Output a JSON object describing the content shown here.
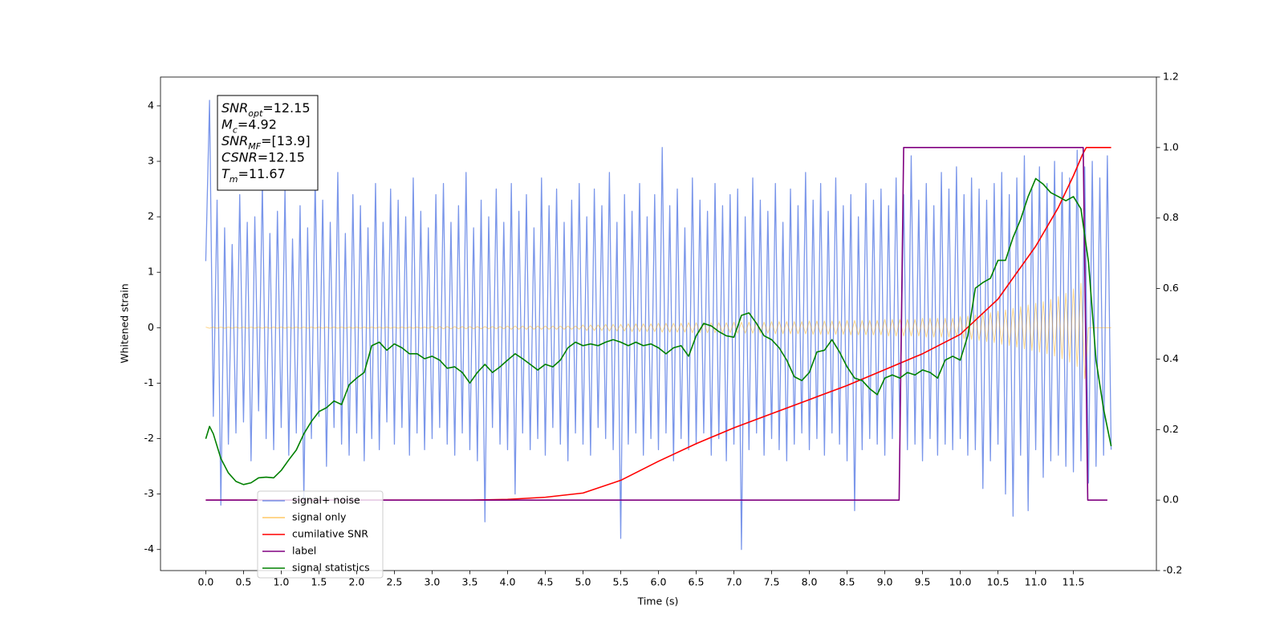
{
  "chart_data": {
    "type": "line",
    "xlabel": "Time (s)",
    "ylabel": "Whitened strain",
    "xlim": [
      -0.6,
      12.6
    ],
    "ylim": [
      -4.38,
      4.52
    ],
    "y2lim": [
      -0.2,
      1.2
    ],
    "xticks": [
      {
        "value": 0,
        "label": "0.0"
      },
      0.5,
      {
        "value": 1,
        "label": "1.0"
      },
      1.5,
      {
        "value": 2,
        "label": "2.0"
      },
      2.5,
      {
        "value": 3,
        "label": "3.0"
      },
      3.5,
      {
        "value": 4,
        "label": "4.0"
      },
      4.5,
      {
        "value": 5,
        "label": "5.0"
      },
      5.5,
      {
        "value": 6,
        "label": "6.0"
      },
      6.5,
      {
        "value": 7,
        "label": "7.0"
      },
      7.5,
      {
        "value": 8,
        "label": "8.0"
      },
      8.5,
      {
        "value": 9,
        "label": "9.0"
      },
      9.5,
      {
        "value": 10,
        "label": "10.0"
      },
      10.5,
      {
        "value": 11,
        "label": "11.0"
      },
      11.5
    ],
    "yticks": [
      -4,
      -3,
      -2,
      -1,
      0,
      1,
      2,
      3,
      4
    ],
    "y2ticks": [
      -0.2,
      {
        "value": 0,
        "label": "0.0"
      },
      0.2,
      0.4,
      0.6,
      0.8,
      {
        "value": 1,
        "label": "1.0"
      },
      1.2
    ],
    "annotation": [
      {
        "main": "SNR",
        "sub": "opt",
        "value": "=12.15"
      },
      {
        "main": "M",
        "sub": "c",
        "value": "=4.92"
      },
      {
        "main": "SNR",
        "sub": "MF",
        "value": "=[13.9]"
      },
      {
        "main": "CSNR",
        "value": "=12.15"
      },
      {
        "main": "T",
        "sub": "m",
        "value": "=11.67"
      }
    ],
    "x": [
      0,
      0.05,
      0.1,
      0.15,
      0.2,
      0.25,
      0.3,
      0.35,
      0.4,
      0.45,
      0.5,
      0.55,
      0.6,
      0.65,
      0.7,
      0.75,
      0.8,
      0.85,
      0.9,
      0.95,
      1,
      1.05,
      1.1,
      1.15,
      1.2,
      1.25,
      1.3,
      1.35,
      1.4,
      1.45,
      1.5,
      1.55,
      1.6,
      1.65,
      1.7,
      1.75,
      1.8,
      1.85,
      1.9,
      1.95,
      2,
      2.05,
      2.1,
      2.15,
      2.2,
      2.25,
      2.3,
      2.35,
      2.4,
      2.45,
      2.5,
      2.55,
      2.6,
      2.65,
      2.7,
      2.75,
      2.8,
      2.85,
      2.9,
      2.95,
      3,
      3.05,
      3.1,
      3.15,
      3.2,
      3.25,
      3.3,
      3.35,
      3.4,
      3.45,
      3.5,
      3.55,
      3.6,
      3.65,
      3.7,
      3.75,
      3.8,
      3.85,
      3.9,
      3.95,
      4,
      4.05,
      4.1,
      4.15,
      4.2,
      4.25,
      4.3,
      4.35,
      4.4,
      4.45,
      4.5,
      4.55,
      4.6,
      4.65,
      4.7,
      4.75,
      4.8,
      4.85,
      4.9,
      4.95,
      5,
      5.05,
      5.1,
      5.15,
      5.2,
      5.25,
      5.3,
      5.35,
      5.4,
      5.45,
      5.5,
      5.55,
      5.6,
      5.65,
      5.7,
      5.75,
      5.8,
      5.85,
      5.9,
      5.95,
      6,
      6.05,
      6.1,
      6.15,
      6.2,
      6.25,
      6.3,
      6.35,
      6.4,
      6.45,
      6.5,
      6.55,
      6.6,
      6.65,
      6.7,
      6.75,
      6.8,
      6.85,
      6.9,
      6.95,
      7,
      7.05,
      7.1,
      7.15,
      7.2,
      7.25,
      7.3,
      7.35,
      7.4,
      7.45,
      7.5,
      7.55,
      7.6,
      7.65,
      7.7,
      7.75,
      7.8,
      7.85,
      7.9,
      7.95,
      8,
      8.05,
      8.1,
      8.15,
      8.2,
      8.25,
      8.3,
      8.35,
      8.4,
      8.45,
      8.5,
      8.55,
      8.6,
      8.65,
      8.7,
      8.75,
      8.8,
      8.85,
      8.9,
      8.95,
      9,
      9.05,
      9.1,
      9.15,
      9.2,
      9.25,
      9.3,
      9.35,
      9.4,
      9.45,
      9.5,
      9.55,
      9.6,
      9.65,
      9.7,
      9.75,
      9.8,
      9.85,
      9.9,
      9.95,
      10,
      10.05,
      10.1,
      10.15,
      10.2,
      10.25,
      10.3,
      10.35,
      10.4,
      10.45,
      10.5,
      10.55,
      10.6,
      10.65,
      10.7,
      10.75,
      10.8,
      10.85,
      10.9,
      10.95,
      11,
      11.05,
      11.1,
      11.15,
      11.2,
      11.25,
      11.3,
      11.35,
      11.4,
      11.45,
      11.5,
      11.55,
      11.6,
      11.65,
      11.7,
      11.75,
      11.8,
      11.85,
      11.9,
      11.95,
      12
    ],
    "series": [
      {
        "name": "signal+ noise",
        "color": "#4169e1",
        "values": [
          1.2,
          4.1,
          -1.6,
          2.3,
          -3.2,
          1.8,
          -2.1,
          1.5,
          -1.9,
          2.4,
          -1.7,
          1.9,
          -2.4,
          2.0,
          -1.5,
          2.6,
          -2.0,
          1.7,
          -2.2,
          2.1,
          -1.8,
          2.5,
          -2.3,
          1.6,
          -1.9,
          2.2,
          -3.1,
          1.8,
          -2.0,
          2.7,
          -1.6,
          2.3,
          -2.5,
          1.9,
          -1.8,
          2.8,
          -2.1,
          1.7,
          -2.3,
          2.4,
          -1.9,
          2.2,
          -2.4,
          1.8,
          -2.0,
          2.6,
          -2.2,
          1.9,
          -1.7,
          2.5,
          -2.1,
          2.3,
          -1.8,
          2.0,
          -2.3,
          2.7,
          -1.9,
          2.1,
          -2.2,
          1.8,
          -2.0,
          2.4,
          -1.8,
          2.6,
          -2.1,
          1.9,
          -2.3,
          2.2,
          -1.9,
          2.8,
          -2.2,
          1.8,
          -2.4,
          2.3,
          -3.5,
          2.0,
          -1.8,
          2.5,
          -2.1,
          1.9,
          -2.2,
          2.6,
          -3.0,
          2.1,
          -1.9,
          2.4,
          -2.2,
          1.8,
          -2.0,
          2.7,
          -2.3,
          2.2,
          -1.8,
          2.5,
          -2.1,
          1.9,
          -2.4,
          2.3,
          -1.9,
          2.6,
          -2.1,
          2.0,
          -2.3,
          2.5,
          -1.8,
          2.2,
          -2.0,
          2.8,
          -2.2,
          1.9,
          -3.8,
          2.4,
          -2.1,
          2.1,
          -1.9,
          2.6,
          -2.3,
          2.0,
          -2.0,
          2.4,
          -2.2,
          3.25,
          -1.9,
          2.2,
          -2.4,
          2.5,
          -2.0,
          1.8,
          -2.2,
          2.7,
          -2.1,
          2.3,
          -1.9,
          2.1,
          -2.3,
          2.6,
          -2.0,
          2.2,
          -2.4,
          2.4,
          -2.1,
          2.5,
          -4.0,
          2.0,
          -2.2,
          2.7,
          -1.9,
          2.3,
          -2.3,
          2.1,
          -2.0,
          2.6,
          -2.2,
          1.9,
          -2.4,
          2.5,
          -2.1,
          2.2,
          -1.9,
          2.8,
          -2.2,
          2.3,
          -2.0,
          2.6,
          -2.3,
          2.1,
          -1.9,
          2.7,
          -2.1,
          2.2,
          -2.4,
          2.4,
          -3.3,
          2.0,
          -2.2,
          2.6,
          -2.0,
          2.3,
          -2.1,
          2.5,
          -2.3,
          2.2,
          -2.0,
          2.7,
          -1.9,
          2.4,
          -2.2,
          3.1,
          -2.1,
          2.3,
          -2.4,
          2.6,
          -2.0,
          2.2,
          -2.3,
          2.8,
          -2.1,
          2.5,
          -2.2,
          2.9,
          -2.0,
          2.4,
          -2.3,
          2.7,
          -2.2,
          2.5,
          -2.9,
          2.3,
          -2.4,
          2.6,
          -2.1,
          2.8,
          -3.0,
          2.4,
          -3.4,
          2.7,
          -2.3,
          3.1,
          -3.3,
          2.5,
          -2.2,
          2.9,
          -2.7,
          2.6,
          -2.4,
          3.0,
          -2.3,
          2.8,
          -2.5,
          2.7,
          -2.6,
          3.2,
          -2.4,
          2.9,
          -2.8,
          3.0,
          -2.5,
          2.7,
          -2.3,
          3.1,
          -2.2
        ]
      },
      {
        "name": "signal only",
        "color": "#ffa500",
        "values": [
          0.01,
          -0.01,
          0.01,
          -0.01,
          0.01,
          -0.01,
          0.01,
          -0.01,
          0.01,
          -0.01,
          0.01,
          -0.01,
          0.01,
          -0.01,
          0.01,
          -0.01,
          0.01,
          -0.01,
          0.01,
          -0.01,
          0.01,
          -0.01,
          0.01,
          -0.01,
          0.01,
          -0.01,
          0.01,
          -0.01,
          0.01,
          -0.01,
          0.01,
          -0.01,
          0.01,
          -0.01,
          0.01,
          -0.01,
          0.01,
          -0.01,
          0.01,
          -0.01,
          0.01,
          -0.01,
          0.01,
          -0.01,
          0.01,
          -0.01,
          0.01,
          -0.01,
          0.01,
          -0.01,
          0.01,
          -0.01,
          0.01,
          -0.01,
          0.01,
          -0.01,
          0.01,
          -0.01,
          0.01,
          -0.01,
          0.02,
          -0.02,
          0.02,
          -0.02,
          0.02,
          -0.02,
          0.02,
          -0.02,
          0.02,
          -0.02,
          0.02,
          -0.02,
          0.02,
          -0.02,
          0.02,
          -0.02,
          0.02,
          -0.02,
          0.02,
          -0.02,
          0.03,
          -0.03,
          0.03,
          -0.03,
          0.03,
          -0.03,
          0.03,
          -0.03,
          0.03,
          -0.03,
          0.03,
          -0.03,
          0.03,
          -0.03,
          0.03,
          -0.03,
          0.03,
          -0.03,
          0.03,
          -0.03,
          0.05,
          -0.05,
          0.05,
          -0.05,
          0.05,
          -0.05,
          0.06,
          -0.06,
          0.06,
          -0.06,
          0.06,
          -0.06,
          0.07,
          -0.07,
          0.07,
          -0.07,
          0.07,
          -0.07,
          0.07,
          -0.07,
          0.08,
          -0.08,
          0.08,
          -0.08,
          0.08,
          -0.08,
          0.08,
          -0.08,
          0.09,
          -0.09,
          0.09,
          -0.09,
          0.09,
          -0.09,
          0.09,
          -0.09,
          0.09,
          -0.09,
          0.09,
          -0.09,
          0.1,
          -0.1,
          0.1,
          -0.1,
          0.1,
          -0.1,
          0.1,
          -0.1,
          0.1,
          -0.1,
          0.11,
          -0.11,
          0.11,
          -0.11,
          0.11,
          -0.11,
          0.11,
          -0.11,
          0.11,
          -0.11,
          0.12,
          -0.12,
          0.12,
          -0.12,
          0.12,
          -0.12,
          0.12,
          -0.12,
          0.12,
          -0.12,
          0.13,
          -0.13,
          0.13,
          -0.13,
          0.13,
          -0.13,
          0.13,
          -0.13,
          0.13,
          -0.13,
          0.15,
          -0.15,
          0.15,
          -0.15,
          0.15,
          -0.15,
          0.15,
          -0.15,
          0.15,
          -0.15,
          0.17,
          -0.17,
          0.17,
          -0.17,
          0.17,
          -0.17,
          0.17,
          -0.17,
          0.17,
          -0.17,
          0.2,
          -0.2,
          0.21,
          -0.21,
          0.23,
          -0.23,
          0.25,
          -0.25,
          0.27,
          -0.27,
          0.3,
          -0.3,
          0.32,
          -0.32,
          0.35,
          -0.35,
          0.38,
          -0.38,
          0.41,
          -0.41,
          0.44,
          -0.44,
          0.47,
          -0.47,
          0.51,
          -0.51,
          0.56,
          -0.56,
          0.62,
          -0.62,
          0.7,
          -0.7,
          0.8,
          -0.92,
          0,
          0,
          0,
          0,
          0,
          0,
          0
        ]
      },
      {
        "name": "cumilative SNR",
        "color": "#ff0000",
        "axis": "y2",
        "x": [
          0,
          3.5,
          4.0,
          4.5,
          5.0,
          5.5,
          6.0,
          6.5,
          7.0,
          7.5,
          8.0,
          8.5,
          9.0,
          9.5,
          10.0,
          10.5,
          11.0,
          11.3,
          11.5,
          11.62,
          11.67,
          12.0
        ],
        "values": [
          0,
          0,
          0.002,
          0.008,
          0.02,
          0.056,
          0.11,
          0.16,
          0.205,
          0.245,
          0.285,
          0.325,
          0.37,
          0.415,
          0.47,
          0.57,
          0.72,
          0.83,
          0.92,
          0.98,
          1.0,
          1.0
        ]
      },
      {
        "name": "label",
        "color": "#800080",
        "axis": "y2",
        "x": [
          0,
          9.19,
          9.25,
          11.63,
          11.69,
          11.95
        ],
        "values": [
          0,
          0,
          1,
          1,
          0,
          0
        ]
      },
      {
        "name": "signal statistics",
        "color": "#008000",
        "axis": "y2",
        "x": [
          0,
          0.05,
          0.1,
          0.2,
          0.3,
          0.4,
          0.5,
          0.6,
          0.7,
          0.8,
          0.9,
          1.0,
          1.1,
          1.2,
          1.3,
          1.4,
          1.5,
          1.6,
          1.7,
          1.8,
          1.9,
          2.0,
          2.1,
          2.2,
          2.3,
          2.4,
          2.5,
          2.6,
          2.7,
          2.8,
          2.9,
          3.0,
          3.1,
          3.2,
          3.3,
          3.4,
          3.5,
          3.6,
          3.7,
          3.8,
          3.9,
          4.0,
          4.1,
          4.2,
          4.3,
          4.4,
          4.5,
          4.6,
          4.7,
          4.8,
          4.9,
          5.0,
          5.1,
          5.2,
          5.3,
          5.4,
          5.5,
          5.6,
          5.7,
          5.8,
          5.9,
          6.0,
          6.1,
          6.2,
          6.3,
          6.4,
          6.5,
          6.6,
          6.7,
          6.8,
          6.9,
          7.0,
          7.1,
          7.2,
          7.3,
          7.4,
          7.5,
          7.6,
          7.7,
          7.8,
          7.9,
          8.0,
          8.1,
          8.2,
          8.3,
          8.4,
          8.5,
          8.6,
          8.7,
          8.8,
          8.9,
          9.0,
          9.1,
          9.2,
          9.3,
          9.4,
          9.5,
          9.6,
          9.7,
          9.8,
          9.9,
          10.0,
          10.1,
          10.2,
          10.3,
          10.4,
          10.5,
          10.6,
          10.7,
          10.8,
          10.9,
          11.0,
          11.1,
          11.2,
          11.3,
          11.4,
          11.5,
          11.6,
          11.7,
          11.8,
          11.9,
          12.0
        ],
        "values": [
          0.174,
          0.209,
          0.188,
          0.118,
          0.077,
          0.053,
          0.044,
          0.049,
          0.063,
          0.065,
          0.063,
          0.084,
          0.114,
          0.142,
          0.188,
          0.223,
          0.251,
          0.262,
          0.281,
          0.271,
          0.327,
          0.346,
          0.362,
          0.438,
          0.448,
          0.425,
          0.443,
          0.432,
          0.415,
          0.415,
          0.401,
          0.408,
          0.397,
          0.374,
          0.378,
          0.362,
          0.332,
          0.362,
          0.385,
          0.362,
          0.378,
          0.397,
          0.415,
          0.401,
          0.385,
          0.369,
          0.385,
          0.378,
          0.397,
          0.432,
          0.448,
          0.438,
          0.443,
          0.438,
          0.448,
          0.455,
          0.448,
          0.438,
          0.448,
          0.438,
          0.443,
          0.432,
          0.415,
          0.432,
          0.438,
          0.408,
          0.466,
          0.501,
          0.494,
          0.478,
          0.466,
          0.462,
          0.524,
          0.531,
          0.501,
          0.466,
          0.455,
          0.432,
          0.397,
          0.35,
          0.339,
          0.362,
          0.42,
          0.425,
          0.455,
          0.42,
          0.378,
          0.346,
          0.339,
          0.316,
          0.299,
          0.346,
          0.355,
          0.346,
          0.362,
          0.355,
          0.369,
          0.362,
          0.346,
          0.397,
          0.408,
          0.397,
          0.466,
          0.601,
          0.617,
          0.629,
          0.68,
          0.68,
          0.745,
          0.796,
          0.861,
          0.912,
          0.896,
          0.872,
          0.861,
          0.849,
          0.861,
          0.826,
          0.675,
          0.397,
          0.258,
          0.153
        ]
      }
    ]
  }
}
